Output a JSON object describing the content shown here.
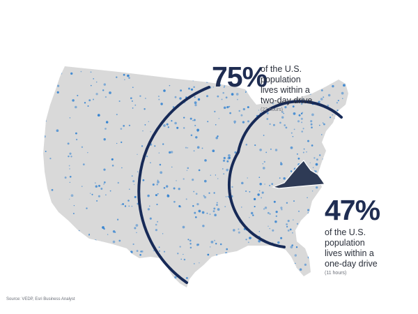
{
  "map": {
    "highlighted_state": "Virginia",
    "colors": {
      "land": "#d9d9d9",
      "population_dots": "#2d7fd0",
      "ring": "#172a57",
      "highlight": "#2e3a55"
    }
  },
  "callouts": {
    "two_day": {
      "percent": "75%",
      "line1": "of the U.S. population",
      "line2": "lives within a",
      "line3": "two-day drive",
      "note": "(22 hours)"
    },
    "one_day": {
      "percent": "47%",
      "line1": "of the U.S.",
      "line2": "population",
      "line3": "lives within a",
      "line4": "one-day drive",
      "note": "(11 hours)"
    }
  },
  "source": "Source: VEDP, Esri Business Analyst"
}
